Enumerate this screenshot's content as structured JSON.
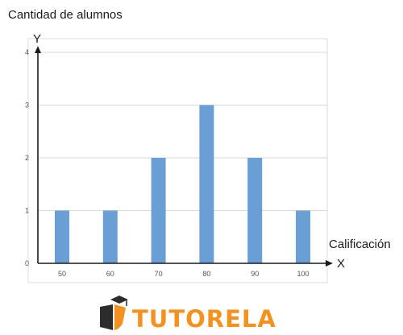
{
  "chart_data": {
    "type": "bar",
    "title": "",
    "ylabel": "Cantidad de alumnos",
    "xlabel": "Calificación",
    "y_axis_letter": "Y",
    "x_axis_letter": "X",
    "categories": [
      "50",
      "60",
      "70",
      "80",
      "90",
      "100"
    ],
    "values": [
      1,
      1,
      2,
      3,
      2,
      1
    ],
    "ylim": [
      0,
      4
    ],
    "yticks": [
      0,
      1,
      2,
      3,
      4
    ],
    "grid": true,
    "bar_color": "#6a9fd6"
  },
  "logo": {
    "text": "TUTORELA",
    "color": "#f5911e",
    "icon": "tutorela-logo-icon"
  }
}
